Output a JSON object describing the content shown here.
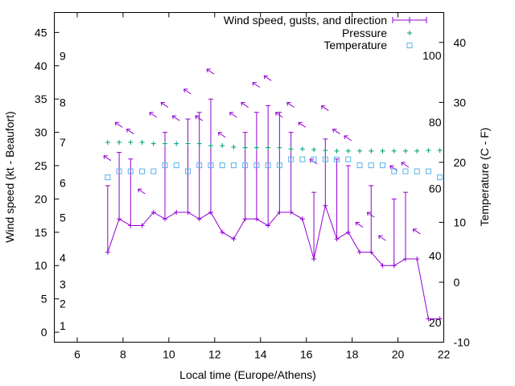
{
  "chart_data": {
    "type": "line",
    "x_axis": {
      "label": "Local time (Europe/Athens)",
      "range": [
        5,
        22
      ],
      "ticks": [
        6,
        8,
        10,
        12,
        14,
        16,
        18,
        20,
        22
      ]
    },
    "y_left": {
      "label": "Wind speed (kt - Beaufort)",
      "range": [
        -1.5,
        48
      ],
      "ticks": [
        0,
        5,
        10,
        15,
        20,
        25,
        30,
        35,
        40,
        45
      ],
      "beaufort_labels": [
        {
          "text": "1",
          "value": 1
        },
        {
          "text": "2",
          "value": 4.3
        },
        {
          "text": "3",
          "value": 7.2
        },
        {
          "text": "4",
          "value": 11.2
        },
        {
          "text": "5",
          "value": 17.2
        },
        {
          "text": "6",
          "value": 22.4
        },
        {
          "text": "7",
          "value": 28.5
        },
        {
          "text": "8",
          "value": 34.5
        },
        {
          "text": "9",
          "value": 41.5
        }
      ]
    },
    "y_right": {
      "label": "Temperature (C - F)",
      "range": [
        -10,
        45
      ],
      "ticks": [
        -10,
        0,
        10,
        20,
        30,
        40
      ],
      "fahrenheit_labels": [
        {
          "text": "20",
          "value": -6.7
        },
        {
          "text": "40",
          "value": 4.4
        },
        {
          "text": "60",
          "value": 15.6
        },
        {
          "text": "80",
          "value": 26.7
        },
        {
          "text": "100",
          "value": 37.8
        }
      ]
    },
    "legend": {
      "position": "top-right",
      "entries": [
        "Wind speed, gusts, and direction",
        "Pressure",
        "Temperature"
      ]
    },
    "colors": {
      "wind": "#9400d3",
      "pressure": "#009e73",
      "temperature": "#56b4e9"
    },
    "series": [
      {
        "name": "Wind speed, gusts, and direction",
        "x": [
          7.33,
          7.83,
          8.33,
          8.83,
          9.33,
          9.83,
          10.33,
          10.83,
          11.33,
          11.83,
          12.33,
          12.83,
          13.33,
          13.83,
          14.33,
          14.83,
          15.33,
          15.83,
          16.33,
          16.83,
          17.33,
          17.83,
          18.33,
          18.83,
          19.33,
          19.83,
          20.33,
          20.83,
          21.33,
          21.83
        ],
        "speed": [
          12,
          17,
          16,
          16,
          18,
          17,
          18,
          18,
          17,
          18,
          15,
          14,
          17,
          17,
          16,
          18,
          18,
          17,
          11,
          19,
          14,
          15,
          12,
          12,
          10,
          10,
          11,
          11,
          2,
          2
        ],
        "gust": [
          22,
          27,
          26,
          null,
          null,
          30,
          null,
          32,
          33,
          35,
          null,
          null,
          30,
          33,
          34,
          33,
          30,
          null,
          21,
          29,
          26,
          25,
          null,
          22,
          null,
          20,
          21,
          null,
          null,
          null
        ],
        "arrow_y": [
          26,
          31,
          30,
          21,
          32.5,
          34,
          32,
          36,
          32,
          39,
          29.5,
          32.5,
          34,
          37,
          38,
          32.5,
          34,
          31,
          25.5,
          33.5,
          30,
          29,
          16,
          17.5,
          14,
          24.5,
          25,
          15,
          0,
          0
        ]
      },
      {
        "name": "Pressure",
        "x": [
          7.33,
          7.83,
          8.33,
          8.83,
          9.33,
          9.83,
          10.33,
          10.83,
          11.33,
          11.83,
          12.33,
          12.83,
          13.33,
          13.83,
          14.33,
          14.83,
          15.33,
          15.83,
          16.33,
          16.83,
          17.33,
          17.83,
          18.33,
          18.83,
          19.33,
          19.83,
          20.33,
          20.83,
          21.33,
          21.83
        ],
        "values": [
          28.5,
          28.5,
          28.5,
          28.5,
          28.3,
          28.3,
          28.3,
          28.3,
          28.3,
          28.0,
          28.0,
          27.8,
          27.7,
          27.7,
          27.7,
          27.7,
          27.5,
          27.5,
          27.4,
          27.3,
          27.2,
          27.2,
          27.2,
          27.2,
          27.2,
          27.2,
          27.2,
          27.2,
          27.3,
          27.3
        ]
      },
      {
        "name": "Temperature",
        "x": [
          7.33,
          7.83,
          8.33,
          8.83,
          9.33,
          9.83,
          10.33,
          10.83,
          11.33,
          11.83,
          12.33,
          12.83,
          13.33,
          13.83,
          14.33,
          14.83,
          15.33,
          15.83,
          16.33,
          16.83,
          17.33,
          17.83,
          18.33,
          18.83,
          19.33,
          19.83,
          20.33,
          20.83,
          21.33,
          21.83
        ],
        "values": [
          17.5,
          18.5,
          18.5,
          18.5,
          18.5,
          19.5,
          19.5,
          18.5,
          19.5,
          19.5,
          19.5,
          19.5,
          19.5,
          19.5,
          19.5,
          19.5,
          20.5,
          20.5,
          20.5,
          20.5,
          20.5,
          20.5,
          19.5,
          19.5,
          19.5,
          18.5,
          18.5,
          18.5,
          18.5,
          17.5
        ]
      }
    ]
  }
}
